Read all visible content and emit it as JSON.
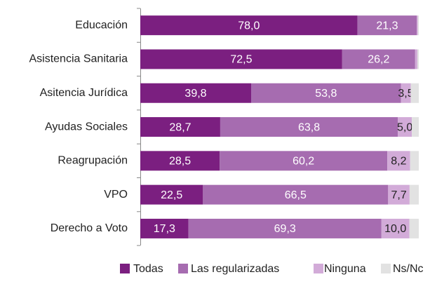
{
  "chart_data": {
    "type": "stacked-bar-horizontal",
    "categories": [
      "Educación",
      "Asistencia Sanitaria",
      "Asitencia Jurídica",
      "Ayudas Sociales",
      "Reagrupación",
      "VPO",
      "Derecho a Voto"
    ],
    "series": [
      {
        "name": "Todas",
        "color": "#7b1f80",
        "values": [
          78.0,
          72.5,
          39.8,
          28.7,
          28.5,
          22.5,
          17.3
        ],
        "value_labels": [
          "78,0",
          "72,5",
          "39,8",
          "28,7",
          "28,5",
          "22,5",
          "17,3"
        ]
      },
      {
        "name": "Las regularizadas",
        "color": "#a66cb0",
        "values": [
          21.3,
          26.2,
          53.8,
          63.8,
          60.2,
          66.5,
          69.3
        ],
        "value_labels": [
          "21,3",
          "26,2",
          "53,8",
          "63,8",
          "60,2",
          "66,5",
          "69,3"
        ]
      },
      {
        "name": "Ninguna",
        "color": "#d2abd8",
        "values": [
          0.4,
          0.8,
          3.5,
          5.0,
          8.2,
          7.7,
          10.0
        ],
        "value_labels": [
          null,
          null,
          "3,5",
          "5,0",
          "8,2",
          "7,7",
          "10,0"
        ]
      },
      {
        "name": "Ns/Nc",
        "color": "#e2e2e2",
        "values": [
          0.3,
          0.5,
          2.9,
          2.5,
          3.1,
          3.3,
          3.4
        ]
      }
    ],
    "xlim": [
      0,
      100
    ]
  }
}
